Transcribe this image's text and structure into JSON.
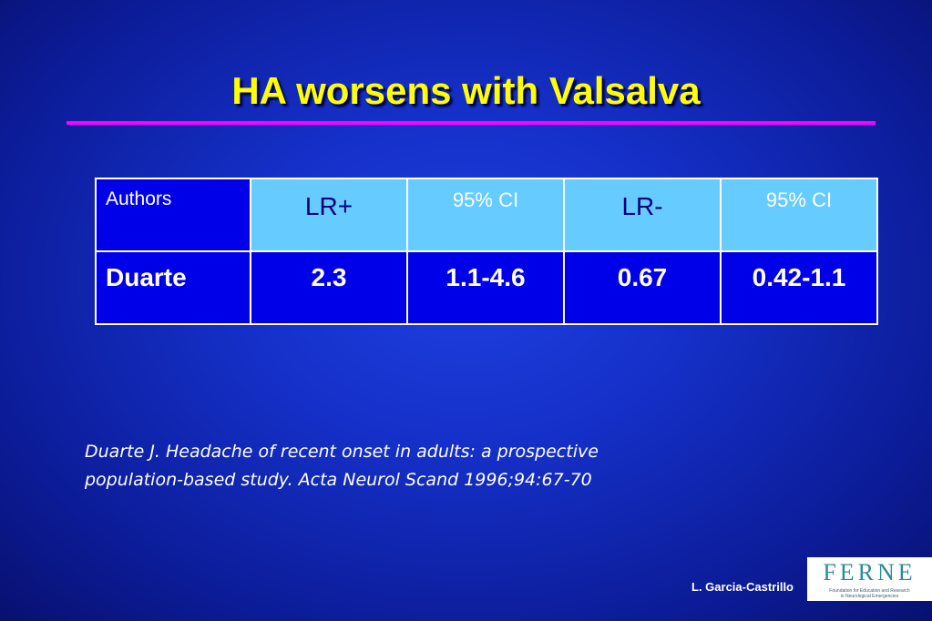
{
  "header": {
    "title": "HA worsens with Valsalva"
  },
  "table": {
    "columns": [
      "Authors",
      "LR+",
      "95% CI",
      "LR-",
      "95% CI"
    ],
    "rows": [
      [
        "Duarte",
        "2.3",
        "1.1-4.6",
        "0.67",
        "0.42-1.1"
      ]
    ]
  },
  "citation": {
    "lines": [
      "Duarte J. Headache of recent onset in adults: a prospective",
      "population-based study. Acta Neurol Scand 1996;94:67-70"
    ]
  },
  "footer": {
    "author": "L. Garcia-Castrillo",
    "logo": {
      "name": "FERNE",
      "tagline": [
        "Foundation for Education and Research",
        "in Neurological Emergencies"
      ]
    }
  }
}
